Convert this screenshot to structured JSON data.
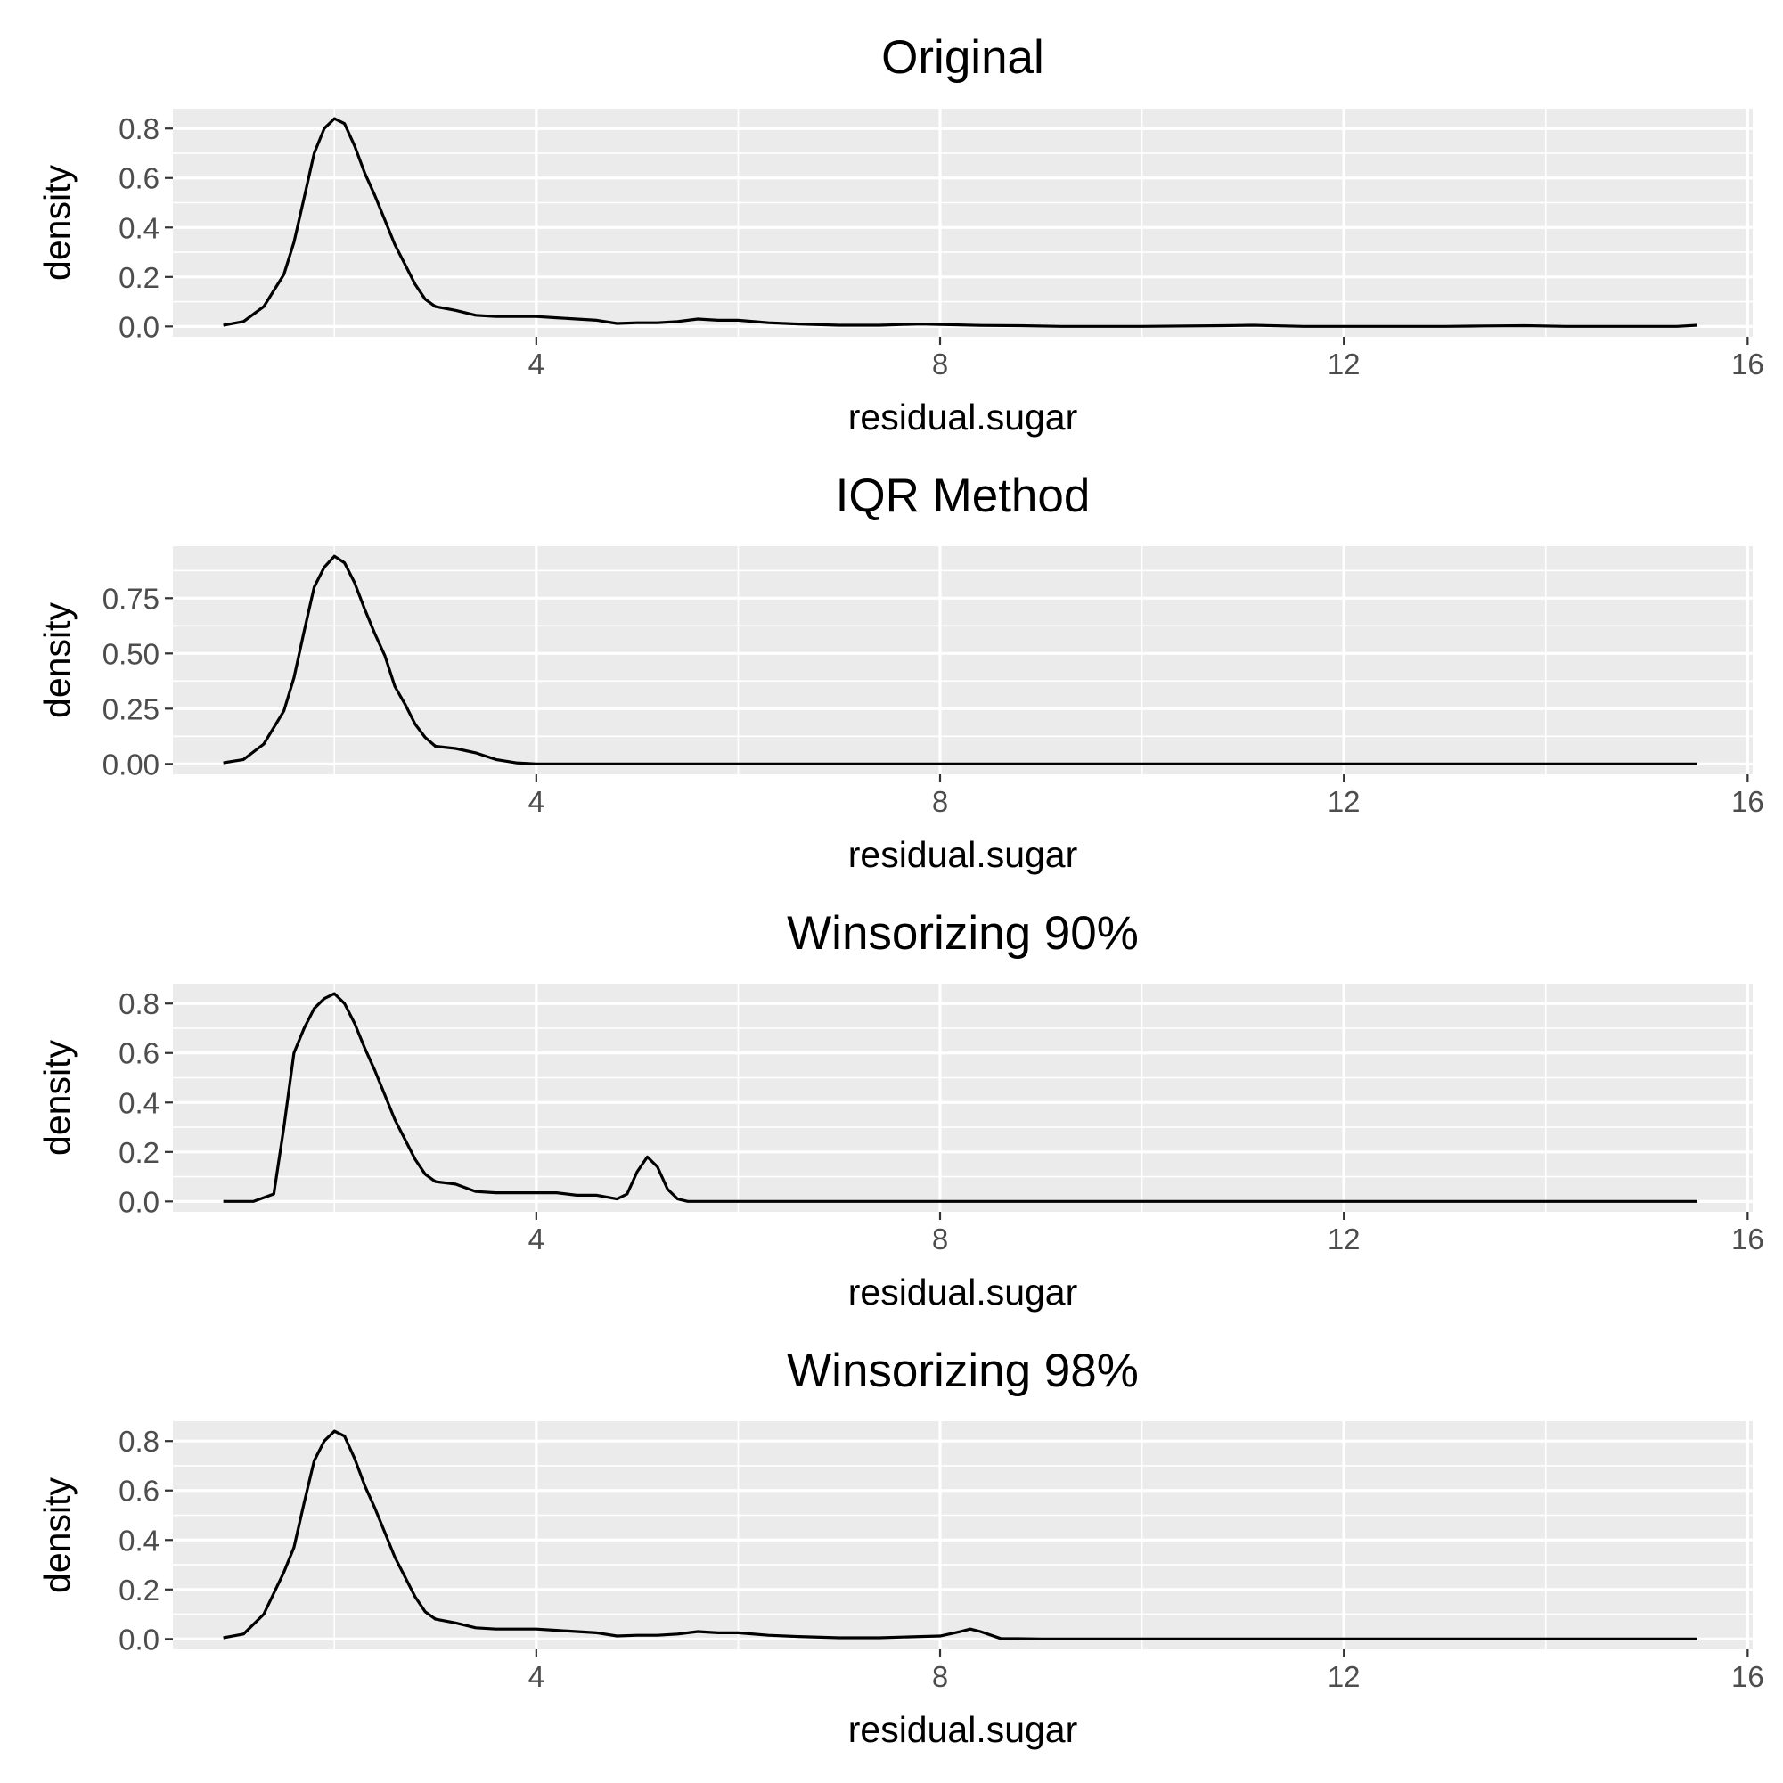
{
  "chart_data": [
    {
      "type": "line",
      "title": "Original",
      "xlabel": "residual.sugar",
      "ylabel": "density",
      "xlim": [
        0.4,
        16.05
      ],
      "ylim": [
        -0.042,
        0.88
      ],
      "x_ticks": [
        4,
        8,
        12,
        16
      ],
      "x_tick_labels": [
        "4",
        "8",
        "12",
        "16"
      ],
      "y_ticks": [
        0.0,
        0.2,
        0.4,
        0.6,
        0.8
      ],
      "y_tick_labels": [
        "0.0",
        "0.2",
        "0.4",
        "0.6",
        "0.8"
      ],
      "grid": true,
      "series": [
        {
          "x": [
            0.9,
            1.1,
            1.3,
            1.5,
            1.6,
            1.7,
            1.8,
            1.9,
            2.0,
            2.1,
            2.2,
            2.3,
            2.4,
            2.5,
            2.6,
            2.7,
            2.8,
            2.9,
            3.0,
            3.2,
            3.4,
            3.6,
            3.8,
            4.0,
            4.2,
            4.4,
            4.6,
            4.8,
            5.0,
            5.2,
            5.4,
            5.6,
            5.8,
            6.0,
            6.3,
            6.6,
            7.0,
            7.4,
            7.8,
            8.0,
            8.4,
            8.8,
            9.2,
            10.0,
            10.8,
            11.1,
            11.6,
            12.4,
            13.0,
            13.4,
            13.8,
            14.2,
            14.8,
            15.3,
            15.5
          ],
          "y": [
            0.005,
            0.02,
            0.08,
            0.21,
            0.34,
            0.52,
            0.7,
            0.8,
            0.84,
            0.82,
            0.73,
            0.62,
            0.53,
            0.43,
            0.33,
            0.25,
            0.17,
            0.11,
            0.08,
            0.065,
            0.045,
            0.04,
            0.04,
            0.04,
            0.035,
            0.03,
            0.025,
            0.012,
            0.015,
            0.015,
            0.02,
            0.03,
            0.025,
            0.025,
            0.015,
            0.01,
            0.005,
            0.005,
            0.01,
            0.008,
            0.004,
            0.003,
            0.0,
            0.0,
            0.003,
            0.005,
            0.0,
            0.0,
            0.0,
            0.002,
            0.003,
            0.0,
            0.0,
            0.0,
            0.005
          ]
        }
      ]
    },
    {
      "type": "line",
      "title": "IQR Method",
      "xlabel": "residual.sugar",
      "ylabel": "density",
      "xlim": [
        0.4,
        16.05
      ],
      "ylim": [
        -0.047,
        0.985
      ],
      "x_ticks": [
        4,
        8,
        12,
        16
      ],
      "x_tick_labels": [
        "4",
        "8",
        "12",
        "16"
      ],
      "y_ticks": [
        0.0,
        0.25,
        0.5,
        0.75
      ],
      "y_tick_labels": [
        "0.00",
        "0.25",
        "0.50",
        "0.75"
      ],
      "grid": true,
      "series": [
        {
          "x": [
            0.9,
            1.1,
            1.3,
            1.5,
            1.6,
            1.7,
            1.8,
            1.9,
            2.0,
            2.1,
            2.2,
            2.3,
            2.4,
            2.5,
            2.6,
            2.7,
            2.8,
            2.9,
            3.0,
            3.2,
            3.4,
            3.6,
            3.8,
            4.0,
            6.0,
            10.0,
            15.5
          ],
          "y": [
            0.005,
            0.02,
            0.09,
            0.24,
            0.39,
            0.6,
            0.8,
            0.89,
            0.94,
            0.91,
            0.82,
            0.7,
            0.59,
            0.49,
            0.35,
            0.27,
            0.18,
            0.12,
            0.08,
            0.07,
            0.05,
            0.02,
            0.005,
            0.0,
            0.0,
            0.0,
            0.0
          ]
        }
      ]
    },
    {
      "type": "line",
      "title": "Winsorizing 90%",
      "xlabel": "residual.sugar",
      "ylabel": "density",
      "xlim": [
        0.4,
        16.05
      ],
      "ylim": [
        -0.042,
        0.88
      ],
      "x_ticks": [
        4,
        8,
        12,
        16
      ],
      "x_tick_labels": [
        "4",
        "8",
        "12",
        "16"
      ],
      "y_ticks": [
        0.0,
        0.2,
        0.4,
        0.6,
        0.8
      ],
      "y_tick_labels": [
        "0.0",
        "0.2",
        "0.4",
        "0.6",
        "0.8"
      ],
      "grid": true,
      "series": [
        {
          "x": [
            0.9,
            1.2,
            1.4,
            1.5,
            1.6,
            1.7,
            1.8,
            1.9,
            2.0,
            2.1,
            2.2,
            2.3,
            2.4,
            2.5,
            2.6,
            2.7,
            2.8,
            2.9,
            3.0,
            3.2,
            3.4,
            3.6,
            3.8,
            4.0,
            4.2,
            4.4,
            4.6,
            4.8,
            4.9,
            5.0,
            5.1,
            5.2,
            5.3,
            5.4,
            5.5,
            5.6,
            6.0,
            10.0,
            15.5
          ],
          "y": [
            0.0,
            0.0,
            0.03,
            0.3,
            0.6,
            0.7,
            0.78,
            0.82,
            0.84,
            0.8,
            0.72,
            0.62,
            0.53,
            0.43,
            0.33,
            0.25,
            0.17,
            0.11,
            0.08,
            0.07,
            0.04,
            0.035,
            0.035,
            0.035,
            0.035,
            0.025,
            0.025,
            0.01,
            0.03,
            0.12,
            0.18,
            0.14,
            0.05,
            0.01,
            0.0,
            0.0,
            0.0,
            0.0,
            0.0
          ]
        }
      ]
    },
    {
      "type": "line",
      "title": "Winsorizing 98%",
      "xlabel": "residual.sugar",
      "ylabel": "density",
      "xlim": [
        0.4,
        16.05
      ],
      "ylim": [
        -0.042,
        0.88
      ],
      "x_ticks": [
        4,
        8,
        12,
        16
      ],
      "x_tick_labels": [
        "4",
        "8",
        "12",
        "16"
      ],
      "y_ticks": [
        0.0,
        0.2,
        0.4,
        0.6,
        0.8
      ],
      "y_tick_labels": [
        "0.0",
        "0.2",
        "0.4",
        "0.6",
        "0.8"
      ],
      "grid": true,
      "series": [
        {
          "x": [
            0.9,
            1.1,
            1.3,
            1.5,
            1.6,
            1.7,
            1.8,
            1.9,
            2.0,
            2.1,
            2.2,
            2.3,
            2.4,
            2.5,
            2.6,
            2.7,
            2.8,
            2.9,
            3.0,
            3.2,
            3.4,
            3.6,
            3.8,
            4.0,
            4.2,
            4.4,
            4.6,
            4.8,
            5.0,
            5.2,
            5.4,
            5.6,
            5.8,
            6.0,
            6.3,
            6.6,
            7.0,
            7.4,
            7.8,
            8.0,
            8.2,
            8.3,
            8.4,
            8.6,
            9.0,
            12.0,
            15.5
          ],
          "y": [
            0.005,
            0.02,
            0.1,
            0.27,
            0.37,
            0.55,
            0.72,
            0.8,
            0.84,
            0.82,
            0.73,
            0.62,
            0.53,
            0.43,
            0.33,
            0.25,
            0.17,
            0.11,
            0.08,
            0.065,
            0.045,
            0.04,
            0.04,
            0.04,
            0.035,
            0.03,
            0.025,
            0.012,
            0.015,
            0.015,
            0.02,
            0.03,
            0.025,
            0.025,
            0.015,
            0.01,
            0.005,
            0.005,
            0.01,
            0.012,
            0.03,
            0.04,
            0.03,
            0.002,
            0.0,
            0.0,
            0.0
          ]
        }
      ]
    }
  ]
}
